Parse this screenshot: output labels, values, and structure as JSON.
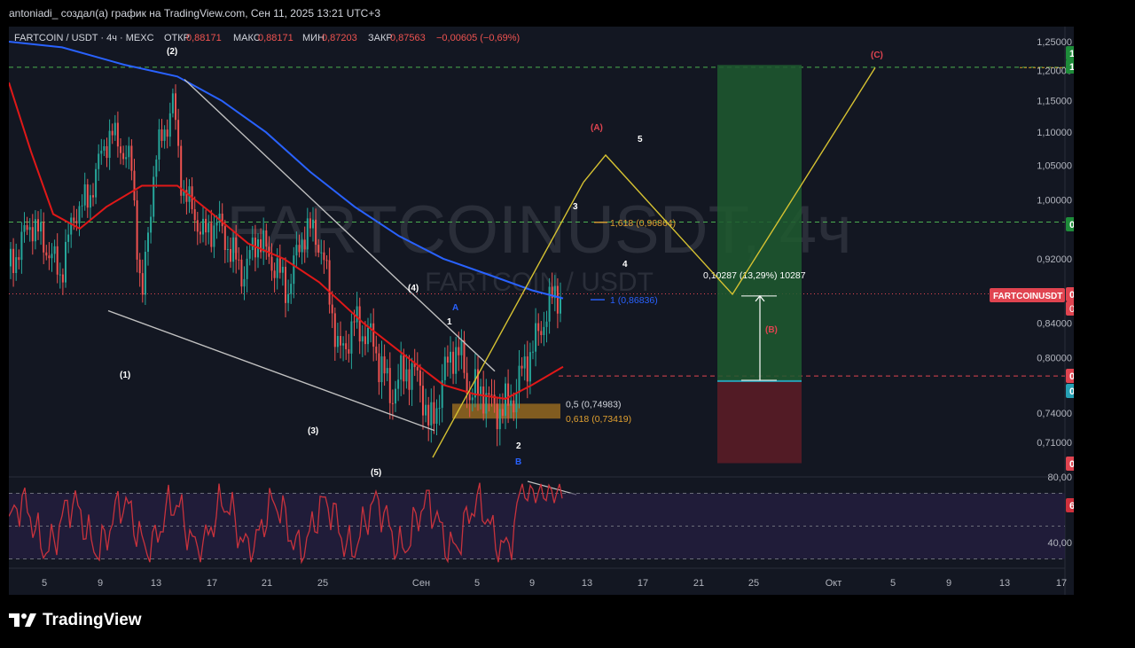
{
  "header": {
    "caption": "antoniadi_ создал(а) график на TradingView.com, Сен 11, 2025 13:21 UTC+3"
  },
  "legend": {
    "symbol": "FARTCOIN / USDT · 4ч · MEXC",
    "open_label": "ОТКР",
    "open_value": "0,88171",
    "high_label": "МАКС",
    "high_value": "0,88171",
    "low_label": "МИН",
    "low_value": "0,87203",
    "close_label": "ЗАКР",
    "close_value": "0,87563",
    "change": "−0,00605 (−0,69%)"
  },
  "watermark": {
    "main": "FARTCOINUSDT, 4ч",
    "sub": "FARTCOIN / USDT"
  },
  "colors": {
    "background": "#131722",
    "bull": "#26a69a",
    "bear": "#ef5350",
    "ma_fast": "#e01818",
    "ma_slow": "#2962ff",
    "wave": "#d6c232",
    "fib": "#e0a030",
    "rsi": "#c8323c",
    "target_zone": "#1f5a2f",
    "stop_zone": "#5a1c26"
  },
  "chart_data": {
    "type": "candlestick",
    "symbol": "FARTCOIN / USDT",
    "interval": "4ч",
    "exchange": "MEXC",
    "y_axis": {
      "ticks": [
        "1,25000",
        "1,20000",
        "1,15000",
        "1,10000",
        "1,05000",
        "1,00000",
        "0,92000",
        "0,84000",
        "0,80000",
        "0,74000",
        "0,71000"
      ],
      "range": [
        0.66,
        1.27
      ],
      "scale": "log"
    },
    "x_axis": {
      "ticks": [
        "5",
        "9",
        "13",
        "17",
        "21",
        "25",
        "Сен",
        "5",
        "9",
        "13",
        "17",
        "21",
        "25",
        "Окт",
        "5",
        "9",
        "13",
        "17"
      ]
    },
    "price_labels": [
      {
        "text": "1,20962",
        "value": 1.20962,
        "color": "#1e8c3a"
      },
      {
        "text": "1,20567",
        "value": 1.20567,
        "color": "#1e8c3a"
      },
      {
        "text": "0,96893",
        "value": 0.96893,
        "color": "#1e8c3a"
      },
      {
        "text": "0,87563",
        "value": 0.87563,
        "color": "#e04450"
      },
      {
        "text": "0,77972",
        "value": 0.77972,
        "color": "#e04450"
      },
      {
        "text": "0,77412",
        "value": 0.77412,
        "color": "#26a0b4"
      },
      {
        "text": "0,68940",
        "value": 0.6894,
        "color": "#e04450"
      }
    ],
    "current_price": {
      "value": 0.87563,
      "ticker": "FARTCOINUSDT",
      "countdown": "01:38:20"
    },
    "levels": [
      {
        "value": 1.20567,
        "color": "#4caf50",
        "style": "dashed"
      },
      {
        "value": 0.96893,
        "color": "#4caf50",
        "style": "dashed"
      },
      {
        "value": 0.87563,
        "color": "#e04450",
        "style": "dotted"
      },
      {
        "value": 0.77972,
        "color": "#e04450",
        "style": "dashed"
      }
    ],
    "fib_labels": [
      {
        "text": "1,618 (0,96864)",
        "value": 0.96864
      },
      {
        "text": "1 (0,86836)",
        "value": 0.86836
      },
      {
        "text": "0,5 (0,74983)",
        "value": 0.74983
      },
      {
        "text": "0,618 (0,73419)",
        "value": 0.73419
      }
    ],
    "position_label": "0,10287 (13,29%) 10287",
    "wave_labels": [
      "(2)",
      "(1)",
      "(3)",
      "(4)",
      "(5)",
      "1",
      "2",
      "3",
      "4",
      "5",
      "A",
      "B",
      "(A)",
      "(B)",
      "(C)"
    ],
    "rsi": {
      "value": "63,08",
      "ticks": [
        "80,00",
        "40,00"
      ],
      "range": [
        20,
        90
      ],
      "bands": [
        70,
        30
      ]
    }
  }
}
